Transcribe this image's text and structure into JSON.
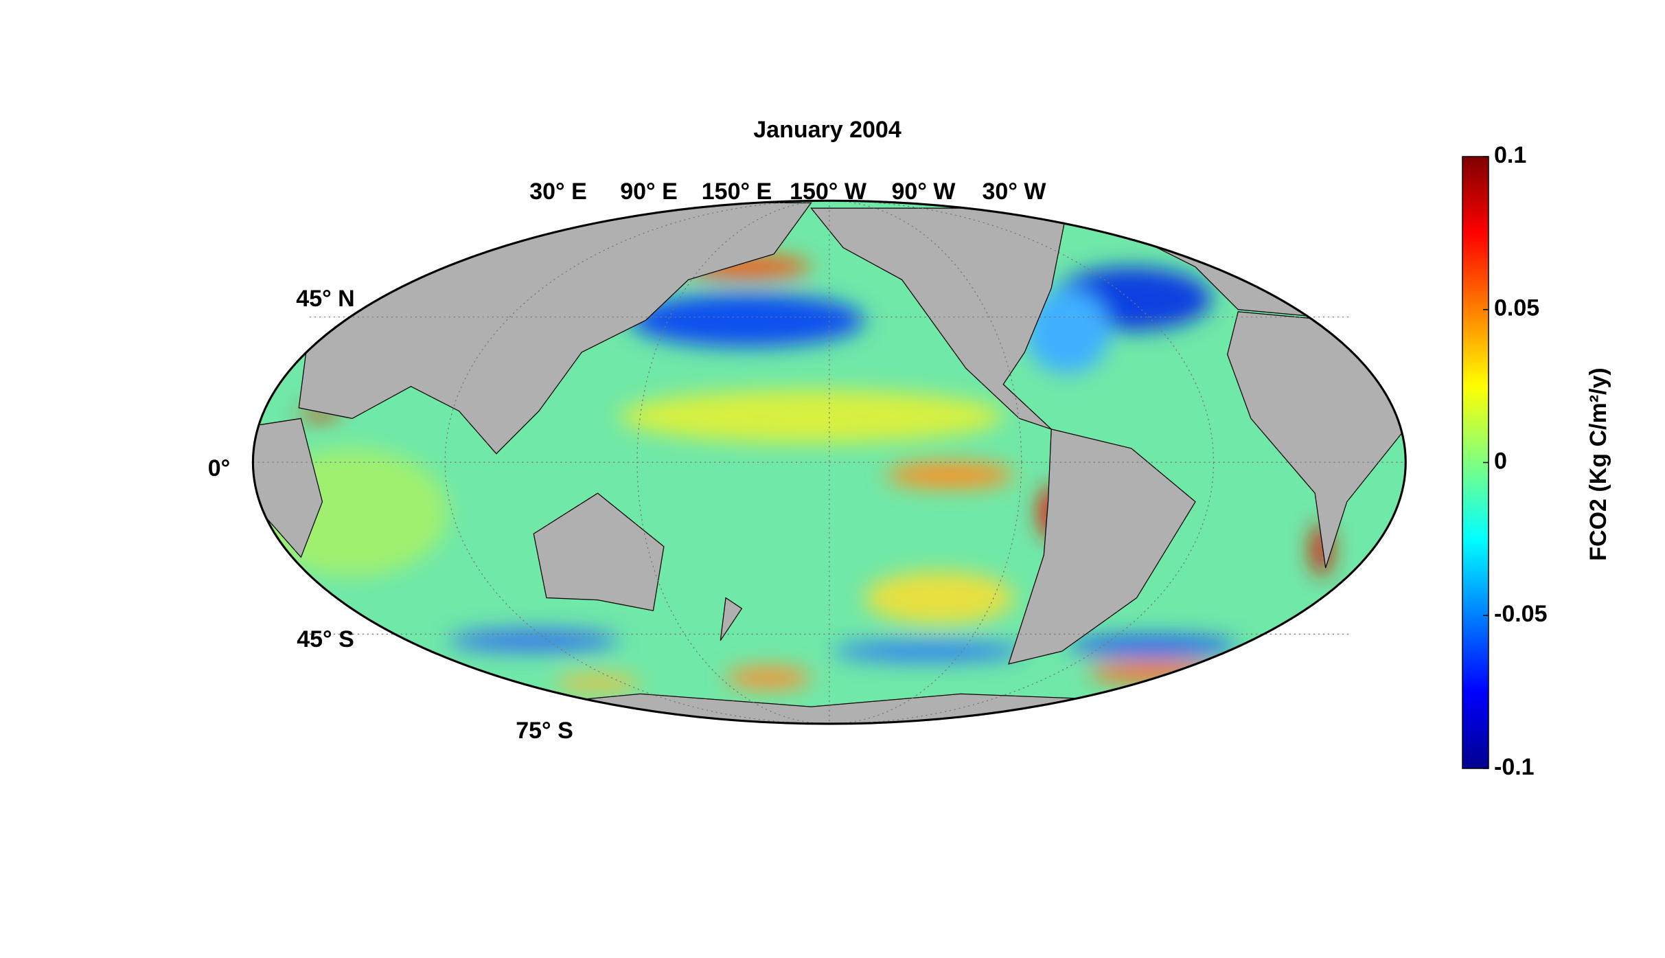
{
  "title": "January 2004",
  "longitude_labels": [
    "30° E",
    "90° E",
    "150° E",
    "150° W",
    "90° W",
    "30° W"
  ],
  "latitude_labels": [
    "45° N",
    "0°",
    "45° S",
    "75° S"
  ],
  "colorbar": {
    "label": "FCO2 (Kg C/m²/y)",
    "ylim": [
      -0.1,
      0.1
    ],
    "yticks": [
      0.1,
      0.05,
      0,
      -0.05,
      -0.1
    ]
  }
}
